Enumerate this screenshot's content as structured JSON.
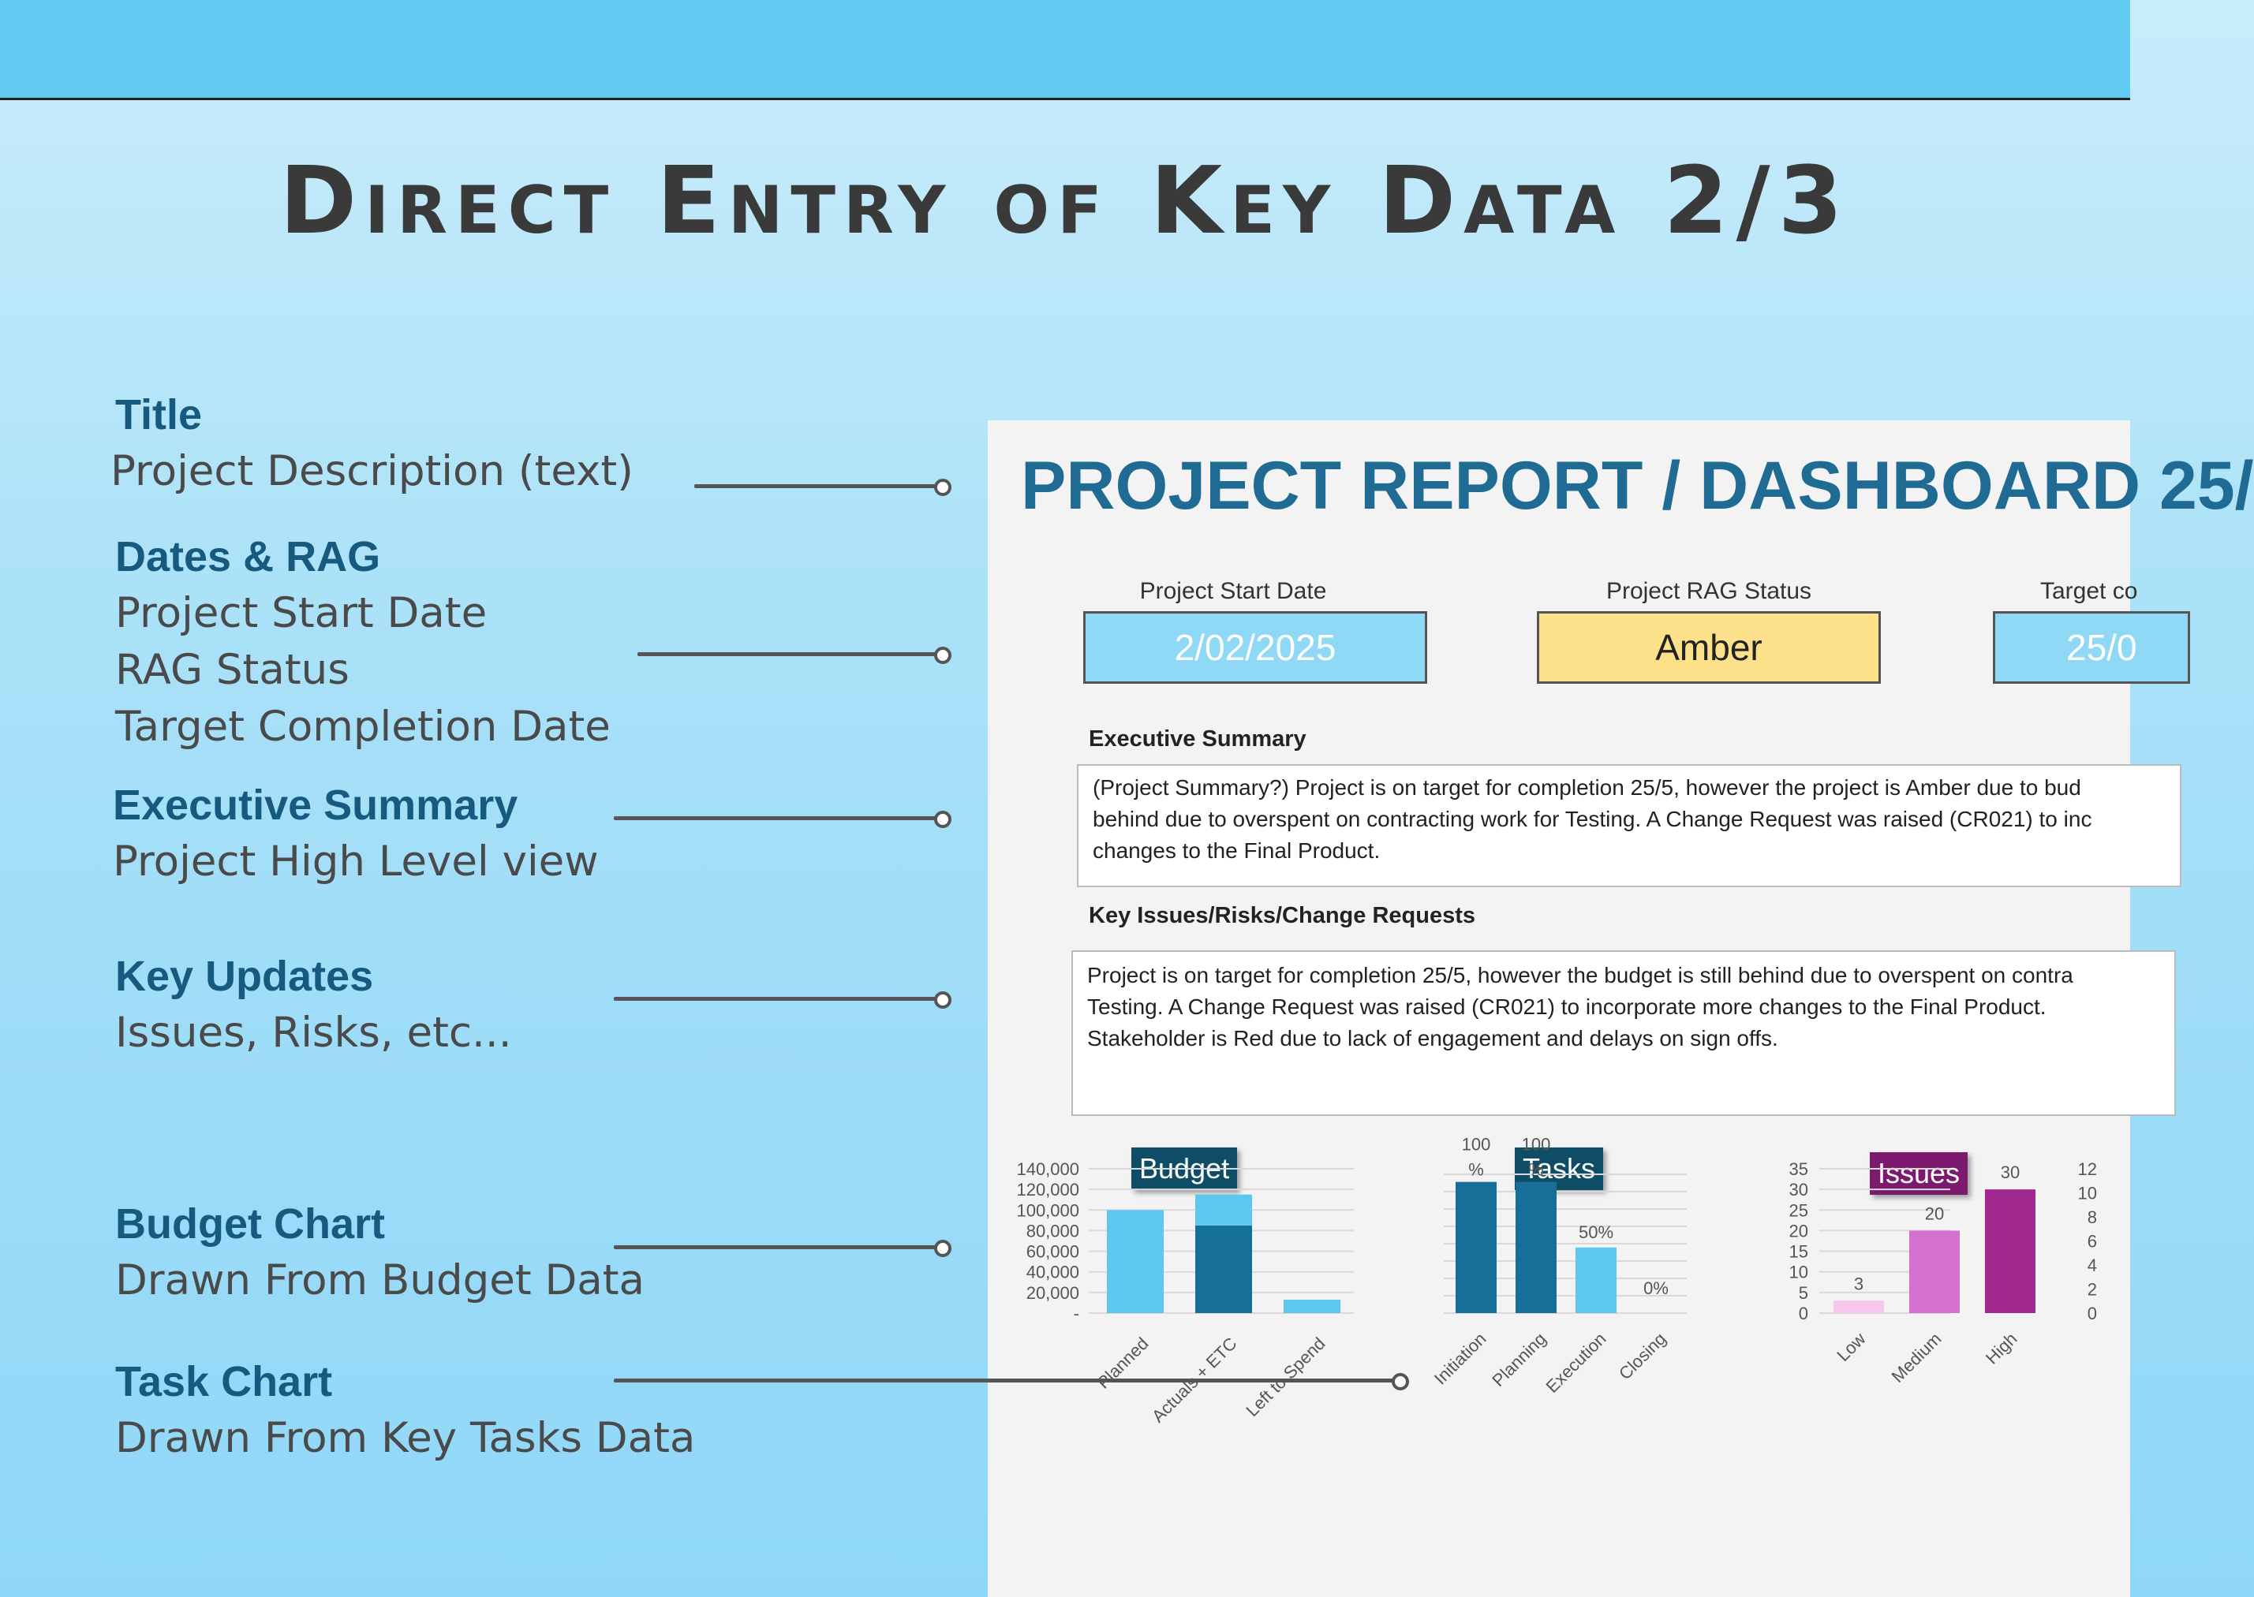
{
  "slide": {
    "title": "Direct Entry of Key Data 2/3"
  },
  "annotations": [
    {
      "heading": "Title",
      "lines": [
        "Project Description (text)"
      ]
    },
    {
      "heading": "Dates & RAG",
      "lines": [
        "Project Start Date",
        "RAG Status",
        "Target Completion Date"
      ]
    },
    {
      "heading": "Executive Summary",
      "lines": [
        "Project High Level view"
      ]
    },
    {
      "heading": "Key Updates",
      "lines": [
        "Issues, Risks, etc..."
      ]
    },
    {
      "heading": "Budget Chart",
      "lines": [
        "Drawn From Budget Data"
      ]
    },
    {
      "heading": "Task Chart",
      "lines": [
        "Drawn From Key Tasks Data"
      ]
    }
  ],
  "dashboard": {
    "title": "PROJECT REPORT / DASHBOARD 25/",
    "fields": {
      "start_date_label": "Project Start Date",
      "start_date_value": "2/02/2025",
      "rag_label": "Project RAG Status",
      "rag_value": "Amber",
      "target_label": "Target co",
      "target_value": "25/0"
    },
    "executive_summary": {
      "label": "Executive Summary",
      "lines": [
        "(Project Summary?) Project is on target for completion 25/5, however the project is Amber due to bud",
        "behind due to overspent on contracting work for Testing. A Change Request was raised (CR021) to inc",
        "changes to the Final Product."
      ]
    },
    "key_issues": {
      "label": "Key Issues/Risks/Change Requests",
      "lines": [
        "Project is on target for completion 25/5, however the budget is still behind due to overspent on contra",
        "Testing. A Change Request was raised (CR021) to incorporate more changes to the Final Product.",
        "Stakeholder is Red due to lack of engagement and delays on sign offs."
      ]
    },
    "colors": {
      "light_blue": "#5bc8f0",
      "dark_blue": "#156f99",
      "amber": "#fde08a",
      "pink_light": "#f7c6ef",
      "pink_mid": "#d670cf",
      "purple": "#a0288e",
      "budget_badge": "#0f4d66",
      "issues_badge": "#7c1a6e"
    }
  },
  "chart_data": [
    {
      "type": "bar",
      "title": "Budget",
      "categories": [
        "Planned",
        "Actuals + ETC",
        "Left to Spend"
      ],
      "series": [
        {
          "values": [
            100000,
            85000,
            13000
          ]
        },
        {
          "values": [
            0,
            30000,
            0
          ]
        }
      ],
      "ylim": [
        0,
        140000
      ],
      "ytick_labels": [
        "-",
        "20,000",
        "40,000",
        "60,000",
        "80,000",
        "100,000",
        "120,000",
        "140,000"
      ],
      "stacked": true
    },
    {
      "type": "bar",
      "title": "Tasks",
      "categories": [
        "Initiation",
        "Planning",
        "Execution",
        "Closing"
      ],
      "values": [
        100,
        100,
        50,
        0
      ],
      "data_labels": [
        "100%",
        "100%",
        "50%",
        "0%"
      ],
      "ylim": [
        0,
        110
      ]
    },
    {
      "type": "bar",
      "title": "Issues",
      "categories": [
        "Low",
        "Medium",
        "High"
      ],
      "values": [
        3,
        20,
        30
      ],
      "ylim": [
        0,
        35
      ],
      "ytick_labels": [
        "0",
        "5",
        "10",
        "15",
        "20",
        "25",
        "30",
        "35"
      ]
    },
    {
      "type": "bar",
      "ylim": [
        0,
        12
      ],
      "ytick_labels": [
        "0",
        "2",
        "4",
        "6",
        "8",
        "10",
        "12"
      ]
    }
  ]
}
